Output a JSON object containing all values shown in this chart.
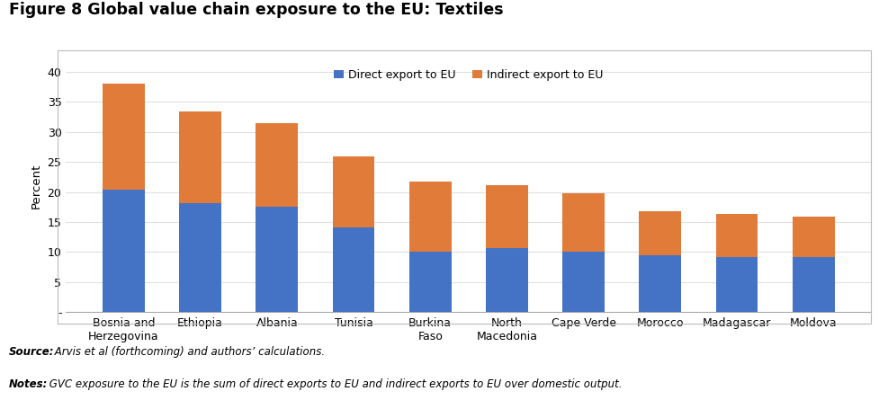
{
  "title": "Figure 8 Global value chain exposure to the EU: Textiles",
  "categories": [
    "Bosnia and\nHerzegovina",
    "Ethiopia",
    "Albania",
    "Tunisia",
    "Burkina\nFaso",
    "North\nMacedonia",
    "Cape Verde",
    "Morocco",
    "Madagascar",
    "Moldova"
  ],
  "direct_export": [
    20.4,
    18.2,
    17.6,
    14.1,
    10.0,
    10.6,
    10.1,
    9.5,
    9.1,
    9.1
  ],
  "indirect_export": [
    17.7,
    15.2,
    13.9,
    11.9,
    11.8,
    10.5,
    9.7,
    7.3,
    7.3,
    6.8
  ],
  "direct_color": "#4472C4",
  "indirect_color": "#E07B39",
  "ylabel": "Percent",
  "ylim": [
    0,
    42
  ],
  "yticks": [
    0,
    5,
    10,
    15,
    20,
    25,
    30,
    35,
    40
  ],
  "ytick_labels": [
    "-",
    "5",
    "10",
    "15",
    "20",
    "25",
    "30",
    "35",
    "40"
  ],
  "legend_direct": "Direct export to EU",
  "legend_indirect": "Indirect export to EU",
  "source_text": " Arvis et al (forthcoming) and authors’ calculations.",
  "notes_text": " GVC exposure to the EU is the sum of direct exports to EU and indirect exports to EU over domestic output.",
  "source_bold": "Source:",
  "notes_bold": "Notes:",
  "background_color": "#FFFFFF",
  "chart_bg_color": "#FFFFFF",
  "border_color": "#BBBBBB",
  "grid_color": "#E0E0E0",
  "title_fontsize": 12.5,
  "axis_fontsize": 9.5,
  "tick_fontsize": 9,
  "legend_fontsize": 9,
  "source_fontsize": 8.5
}
